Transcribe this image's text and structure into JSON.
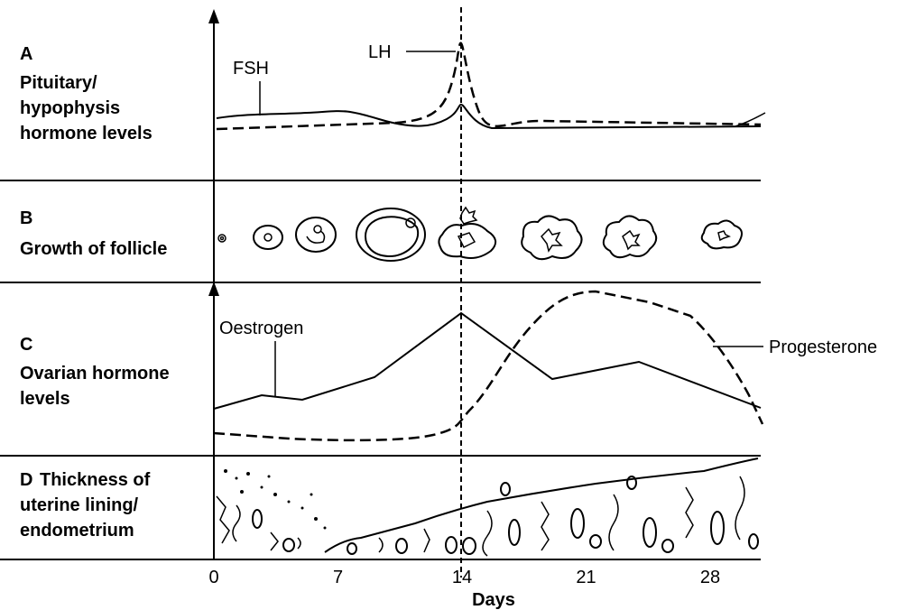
{
  "panels": [
    {
      "letter": "A",
      "lines": [
        "Pituitary/",
        "hypophysis",
        "hormone levels"
      ]
    },
    {
      "letter": "B",
      "lines": [
        "Growth of follicle"
      ]
    },
    {
      "letter": "C",
      "lines": [
        "Ovarian hormone",
        "levels"
      ]
    },
    {
      "letter": "D",
      "lines": [
        "Thickness of",
        "uterine lining/",
        "endometrium"
      ]
    }
  ],
  "curve_labels": {
    "fsh": "FSH",
    "lh": "LH",
    "oestrogen": "Oestrogen",
    "progesterone": "Progesterone"
  },
  "x_axis": {
    "ticks": [
      "0",
      "7",
      "14",
      "21",
      "28"
    ],
    "label": "Days"
  }
}
